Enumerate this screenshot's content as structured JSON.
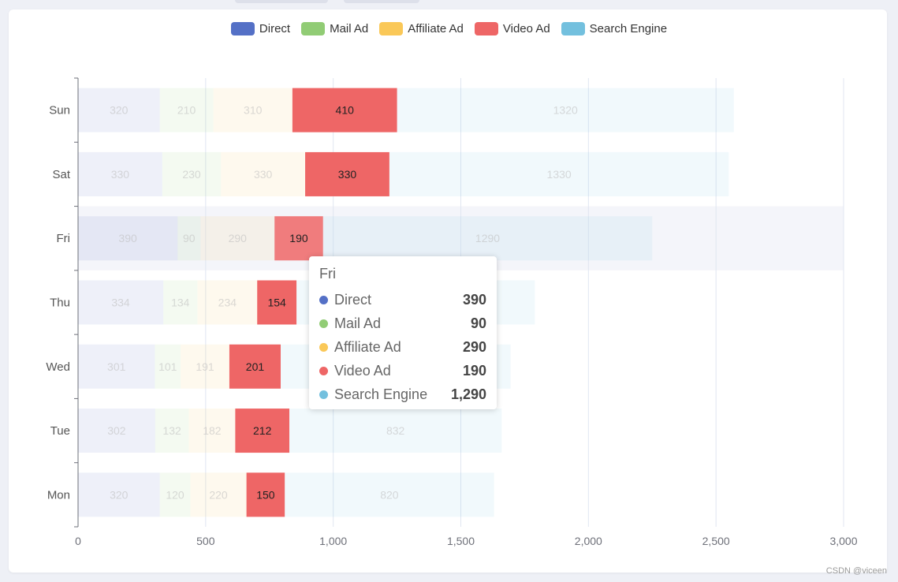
{
  "watermark": "CSDN @viceen",
  "chart_data": {
    "type": "bar",
    "orientation": "horizontal",
    "stacked": true,
    "categories": [
      "Mon",
      "Tue",
      "Wed",
      "Thu",
      "Fri",
      "Sat",
      "Sun"
    ],
    "series": [
      {
        "name": "Direct",
        "color": "#5470c6",
        "values": [
          320,
          302,
          301,
          334,
          390,
          330,
          320
        ],
        "faded": true
      },
      {
        "name": "Mail Ad",
        "color": "#91cc75",
        "values": [
          120,
          132,
          101,
          134,
          90,
          230,
          210
        ],
        "faded": true
      },
      {
        "name": "Affiliate Ad",
        "color": "#fac858",
        "values": [
          220,
          182,
          191,
          234,
          290,
          330,
          310
        ],
        "faded": true
      },
      {
        "name": "Video Ad",
        "color": "#ee6666",
        "values": [
          150,
          212,
          201,
          154,
          190,
          330,
          410
        ],
        "faded": false
      },
      {
        "name": "Search Engine",
        "color": "#73c0de",
        "values": [
          820,
          832,
          901,
          934,
          1290,
          1330,
          1320
        ],
        "faded": true
      }
    ],
    "x_ticks": [
      "0",
      "500",
      "1,000",
      "1,500",
      "2,000",
      "2,500",
      "3,000"
    ],
    "xlim": [
      0,
      3000
    ],
    "grid": true,
    "legend_position": "top-center",
    "highlighted_category": "Fri",
    "tooltip": {
      "title": "Fri",
      "rows": [
        {
          "name": "Direct",
          "value": "390",
          "color": "#5470c6"
        },
        {
          "name": "Mail Ad",
          "value": "90",
          "color": "#91cc75"
        },
        {
          "name": "Affiliate Ad",
          "value": "290",
          "color": "#fac858"
        },
        {
          "name": "Video Ad",
          "value": "190",
          "color": "#ee6666"
        },
        {
          "name": "Search Engine",
          "value": "1,290",
          "color": "#73c0de"
        }
      ]
    }
  }
}
